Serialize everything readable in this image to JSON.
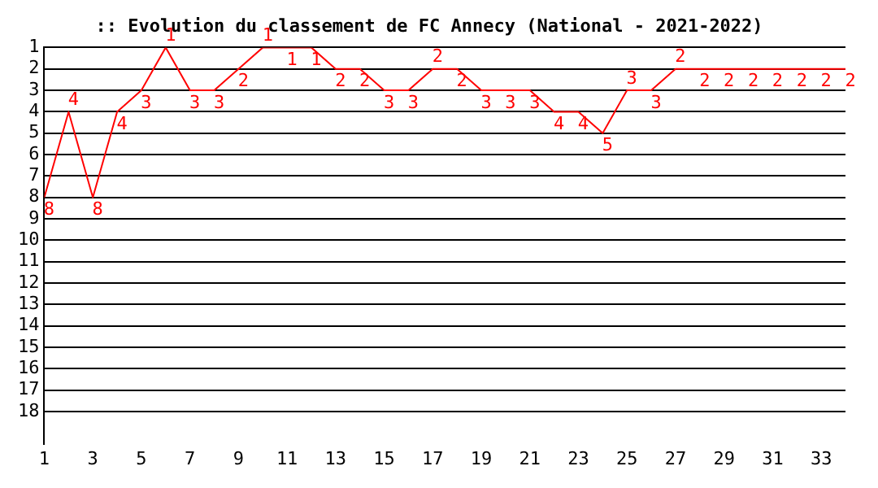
{
  "chart_data": {
    "type": "line",
    "title": ":: Evolution du classement de FC Annecy (National - 2021-2022)",
    "x": [
      1,
      2,
      3,
      4,
      5,
      6,
      7,
      8,
      9,
      10,
      11,
      12,
      13,
      14,
      15,
      16,
      17,
      18,
      19,
      20,
      21,
      22,
      23,
      24,
      25,
      26,
      27,
      28,
      29,
      30,
      31,
      32,
      33,
      34
    ],
    "series": [
      {
        "color": "#ff0000",
        "values": [
          8,
          4,
          8,
          4,
          3,
          1,
          3,
          3,
          2,
          1,
          1,
          1,
          2,
          2,
          3,
          3,
          2,
          2,
          3,
          3,
          3,
          4,
          4,
          5,
          3,
          3,
          2,
          2,
          2,
          2,
          2,
          2,
          2,
          2
        ]
      }
    ],
    "xlim": [
      1,
      34
    ],
    "xticks": [
      1,
      3,
      5,
      7,
      9,
      11,
      13,
      15,
      17,
      19,
      21,
      23,
      25,
      27,
      29,
      31,
      33
    ],
    "ylim": [
      19.5,
      1
    ],
    "yticks": [
      1,
      2,
      3,
      4,
      5,
      6,
      7,
      8,
      9,
      10,
      11,
      12,
      13,
      14,
      15,
      16,
      17,
      18
    ],
    "grid": "y",
    "legend": false,
    "marker": "none",
    "line_style": "solid",
    "data_labels": true
  }
}
